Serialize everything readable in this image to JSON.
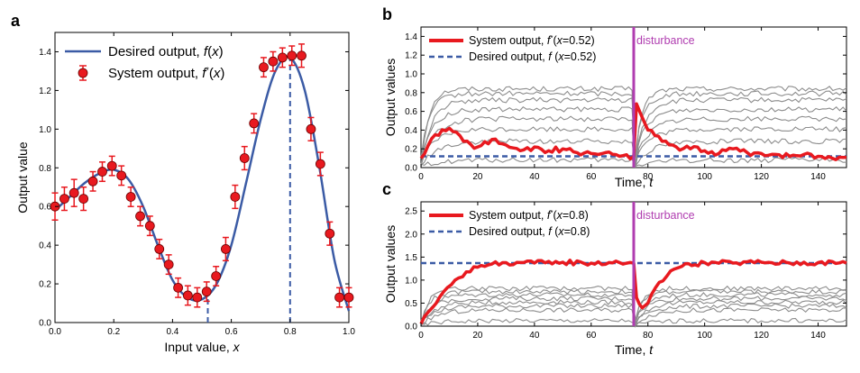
{
  "chart_data": [
    {
      "panel": "a",
      "type": "line",
      "xlabel": "Input value, x",
      "ylabel": "Output value",
      "xlim": [
        0,
        1
      ],
      "ylim": [
        0,
        1.5
      ],
      "xticks": [
        "0.0",
        "0.2",
        "0.4",
        "0.6",
        "0.8",
        "1.0"
      ],
      "yticks": [
        "0.0",
        "0.2",
        "0.4",
        "0.6",
        "0.8",
        "1.0",
        "1.2",
        "1.4"
      ],
      "legend_position": "top-left",
      "legend": {
        "line_label": "Desired output, f(x)",
        "points_label": "System output, f*(x)"
      },
      "curve_color": "#3b5ba5",
      "points_color": "#e8191f",
      "desired_curve": {
        "x": [
          0,
          0.05,
          0.1,
          0.15,
          0.2,
          0.25,
          0.3,
          0.35,
          0.4,
          0.45,
          0.5,
          0.55,
          0.6,
          0.65,
          0.7,
          0.75,
          0.8,
          0.85,
          0.9,
          0.95,
          1.0
        ],
        "y": [
          0.58,
          0.65,
          0.72,
          0.77,
          0.79,
          0.74,
          0.6,
          0.4,
          0.22,
          0.13,
          0.12,
          0.2,
          0.4,
          0.72,
          1.05,
          1.3,
          1.37,
          1.2,
          0.8,
          0.33,
          0.06
        ]
      },
      "system_points": {
        "x": [
          0.0,
          0.032,
          0.065,
          0.097,
          0.129,
          0.161,
          0.194,
          0.226,
          0.258,
          0.29,
          0.323,
          0.355,
          0.387,
          0.419,
          0.452,
          0.484,
          0.516,
          0.548,
          0.581,
          0.613,
          0.645,
          0.677,
          0.71,
          0.742,
          0.774,
          0.806,
          0.839,
          0.871,
          0.903,
          0.935,
          0.968,
          1.0
        ],
        "y": [
          0.6,
          0.64,
          0.67,
          0.64,
          0.73,
          0.78,
          0.81,
          0.76,
          0.65,
          0.55,
          0.5,
          0.38,
          0.3,
          0.18,
          0.14,
          0.13,
          0.16,
          0.24,
          0.38,
          0.65,
          0.85,
          1.03,
          1.32,
          1.35,
          1.37,
          1.38,
          1.38,
          1.0,
          0.82,
          0.46,
          0.13,
          0.13
        ],
        "error": [
          0.07,
          0.06,
          0.07,
          0.06,
          0.05,
          0.05,
          0.05,
          0.05,
          0.05,
          0.05,
          0.05,
          0.05,
          0.05,
          0.05,
          0.05,
          0.05,
          0.05,
          0.05,
          0.06,
          0.06,
          0.06,
          0.05,
          0.05,
          0.05,
          0.05,
          0.05,
          0.06,
          0.06,
          0.06,
          0.06,
          0.05,
          0.05
        ]
      },
      "vlines_x": [
        0.52,
        0.8
      ]
    },
    {
      "panel": "b",
      "type": "line",
      "xlabel": "Time, t",
      "ylabel": "Output values",
      "xlim": [
        0,
        150
      ],
      "ylim": [
        0,
        1.5
      ],
      "xticks": [
        "0",
        "20",
        "40",
        "60",
        "80",
        "100",
        "120",
        "140"
      ],
      "yticks": [
        "0.0",
        "0.2",
        "0.4",
        "0.6",
        "0.8",
        "1.0",
        "1.2",
        "1.4"
      ],
      "legend_position": "top-left",
      "legend": {
        "system_label": "System output, f*(x=0.52)",
        "desired_label": "Desired output, f(x=0.52)"
      },
      "annotation": "disturbance",
      "disturbance_t": 75,
      "desired_value": 0.12,
      "system_series": {
        "t": [
          0,
          5,
          10,
          15,
          20,
          25,
          30,
          35,
          40,
          45,
          50,
          55,
          60,
          65,
          70,
          75,
          76,
          80,
          85,
          90,
          95,
          100,
          105,
          110,
          115,
          120,
          125,
          130,
          135,
          140,
          145,
          150
        ],
        "y": [
          0.1,
          0.35,
          0.42,
          0.28,
          0.22,
          0.3,
          0.24,
          0.18,
          0.22,
          0.18,
          0.2,
          0.16,
          0.15,
          0.16,
          0.12,
          0.12,
          0.68,
          0.4,
          0.28,
          0.22,
          0.2,
          0.18,
          0.15,
          0.2,
          0.16,
          0.15,
          0.14,
          0.12,
          0.14,
          0.12,
          0.1,
          0.11
        ]
      },
      "background_levels": [
        0.84,
        0.79,
        0.72,
        0.62,
        0.52,
        0.41,
        0.28,
        0.08
      ]
    },
    {
      "panel": "c",
      "type": "line",
      "xlabel": "Time, t",
      "ylabel": "Output values",
      "xlim": [
        0,
        150
      ],
      "ylim": [
        0,
        2.7
      ],
      "xticks": [
        "0",
        "20",
        "40",
        "60",
        "80",
        "100",
        "120",
        "140"
      ],
      "yticks": [
        "0.0",
        "0.5",
        "1.0",
        "1.5",
        "2.0",
        "2.5"
      ],
      "legend_position": "top-left",
      "legend": {
        "system_label": "System output, f*(x=0.8)",
        "desired_label": "Desired output, f(x=0.8)"
      },
      "annotation": "disturbance",
      "disturbance_t": 75,
      "desired_value": 1.37,
      "system_series": {
        "t": [
          0,
          4,
          8,
          12,
          16,
          20,
          25,
          30,
          40,
          50,
          60,
          70,
          75,
          76,
          78,
          80,
          84,
          88,
          92,
          100,
          110,
          120,
          130,
          140,
          150
        ],
        "y": [
          0.05,
          0.4,
          0.75,
          1.0,
          1.18,
          1.28,
          1.35,
          1.38,
          1.37,
          1.39,
          1.37,
          1.38,
          1.37,
          0.62,
          0.4,
          0.5,
          0.95,
          1.2,
          1.3,
          1.38,
          1.37,
          1.39,
          1.37,
          1.38,
          1.37
        ]
      },
      "background_levels": [
        0.82,
        0.75,
        0.68,
        0.6,
        0.52,
        0.44,
        0.35,
        0.12
      ]
    }
  ],
  "colors": {
    "system": "#e8191f",
    "desired": "#3b5ba5",
    "background_traces": "#8c8c8c",
    "disturbance": "#b03db0"
  }
}
